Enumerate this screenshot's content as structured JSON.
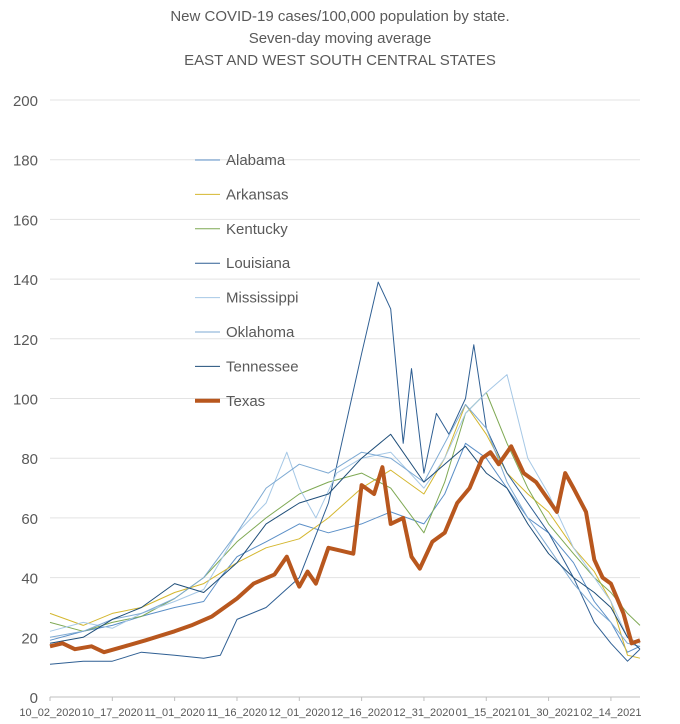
{
  "chart_data": {
    "type": "line",
    "title_lines": [
      "New COVID-19 cases/100,000 population by state.",
      "Seven-day moving average",
      "EAST AND WEST SOUTH CENTRAL STATES"
    ],
    "xlabel": "",
    "ylabel": "",
    "ylim": [
      0,
      200
    ],
    "yticks": [
      0,
      20,
      40,
      60,
      80,
      100,
      120,
      140,
      160,
      180,
      200
    ],
    "grid": true,
    "legend_position": "inside-left",
    "x_start": "10_02_2020",
    "x_end": "02_21_2021",
    "xtick_labels": [
      "10_02_2020",
      "10_17_2020",
      "11_01_2020",
      "11_16_2020",
      "12_01_2020",
      "12_16_2020",
      "12_31_2020",
      "01_15_2021",
      "01_30_2021",
      "02_14_2021"
    ],
    "series": [
      {
        "name": "Alabama",
        "color": "#5b8fc7",
        "width": 1,
        "points": [
          [
            "10_02_2020",
            19
          ],
          [
            "10_10_2020",
            22
          ],
          [
            "10_17_2020",
            24
          ],
          [
            "10_24_2020",
            27
          ],
          [
            "11_01_2020",
            30
          ],
          [
            "11_08_2020",
            32
          ],
          [
            "11_12_2020",
            40
          ],
          [
            "11_16_2020",
            47
          ],
          [
            "11_23_2020",
            52
          ],
          [
            "12_01_2020",
            58
          ],
          [
            "12_08_2020",
            55
          ],
          [
            "12_16_2020",
            58
          ],
          [
            "12_23_2020",
            62
          ],
          [
            "12_31_2020",
            58
          ],
          [
            "01_05_2021",
            68
          ],
          [
            "01_10_2021",
            85
          ],
          [
            "01_15_2021",
            80
          ],
          [
            "01_20_2021",
            70
          ],
          [
            "01_25_2021",
            60
          ],
          [
            "01_30_2021",
            55
          ],
          [
            "02_05_2021",
            45
          ],
          [
            "02_10_2021",
            32
          ],
          [
            "02_14_2021",
            25
          ],
          [
            "02_18_2021",
            15
          ],
          [
            "02_21_2021",
            17
          ]
        ]
      },
      {
        "name": "Arkansas",
        "color": "#d4b72f",
        "width": 1,
        "points": [
          [
            "10_02_2020",
            28
          ],
          [
            "10_10_2020",
            24
          ],
          [
            "10_17_2020",
            28
          ],
          [
            "10_24_2020",
            30
          ],
          [
            "11_01_2020",
            35
          ],
          [
            "11_08_2020",
            38
          ],
          [
            "11_16_2020",
            45
          ],
          [
            "11_23_2020",
            50
          ],
          [
            "12_01_2020",
            53
          ],
          [
            "12_08_2020",
            60
          ],
          [
            "12_16_2020",
            70
          ],
          [
            "12_23_2020",
            76
          ],
          [
            "12_31_2020",
            68
          ],
          [
            "01_05_2021",
            80
          ],
          [
            "01_10_2021",
            98
          ],
          [
            "01_15_2021",
            88
          ],
          [
            "01_20_2021",
            75
          ],
          [
            "01_25_2021",
            68
          ],
          [
            "01_30_2021",
            62
          ],
          [
            "02_05_2021",
            50
          ],
          [
            "02_10_2021",
            42
          ],
          [
            "02_14_2021",
            32
          ],
          [
            "02_18_2021",
            14
          ],
          [
            "02_21_2021",
            13
          ]
        ]
      },
      {
        "name": "Kentucky",
        "color": "#7fa954",
        "width": 1,
        "points": [
          [
            "10_02_2020",
            25
          ],
          [
            "10_10_2020",
            22
          ],
          [
            "10_17_2020",
            25
          ],
          [
            "10_24_2020",
            27
          ],
          [
            "11_01_2020",
            33
          ],
          [
            "11_08_2020",
            40
          ],
          [
            "11_16_2020",
            52
          ],
          [
            "11_23_2020",
            60
          ],
          [
            "12_01_2020",
            68
          ],
          [
            "12_08_2020",
            72
          ],
          [
            "12_16_2020",
            75
          ],
          [
            "12_23_2020",
            70
          ],
          [
            "12_31_2020",
            55
          ],
          [
            "01_05_2021",
            72
          ],
          [
            "01_10_2021",
            95
          ],
          [
            "01_15_2021",
            102
          ],
          [
            "01_20_2021",
            85
          ],
          [
            "01_25_2021",
            70
          ],
          [
            "01_30_2021",
            58
          ],
          [
            "02_05_2021",
            48
          ],
          [
            "02_10_2021",
            40
          ],
          [
            "02_14_2021",
            35
          ],
          [
            "02_18_2021",
            28
          ],
          [
            "02_21_2021",
            24
          ]
        ]
      },
      {
        "name": "Louisiana",
        "color": "#2f5f93",
        "width": 1,
        "points": [
          [
            "10_02_2020",
            11
          ],
          [
            "10_10_2020",
            12
          ],
          [
            "10_17_2020",
            12
          ],
          [
            "10_24_2020",
            15
          ],
          [
            "11_01_2020",
            14
          ],
          [
            "11_08_2020",
            13
          ],
          [
            "11_12_2020",
            14
          ],
          [
            "11_16_2020",
            26
          ],
          [
            "11_23_2020",
            30
          ],
          [
            "12_01_2020",
            40
          ],
          [
            "12_08_2020",
            65
          ],
          [
            "12_12_2020",
            90
          ],
          [
            "12_16_2020",
            115
          ],
          [
            "12_20_2020",
            139
          ],
          [
            "12_23_2020",
            130
          ],
          [
            "12_26_2020",
            85
          ],
          [
            "12_28_2020",
            110
          ],
          [
            "12_31_2020",
            75
          ],
          [
            "01_03_2021",
            95
          ],
          [
            "01_06_2021",
            88
          ],
          [
            "01_10_2021",
            100
          ],
          [
            "01_12_2021",
            118
          ],
          [
            "01_15_2021",
            90
          ],
          [
            "01_20_2021",
            75
          ],
          [
            "01_25_2021",
            65
          ],
          [
            "01_30_2021",
            55
          ],
          [
            "02_05_2021",
            40
          ],
          [
            "02_10_2021",
            25
          ],
          [
            "02_14_2021",
            18
          ],
          [
            "02_18_2021",
            12
          ],
          [
            "02_21_2021",
            16
          ]
        ]
      },
      {
        "name": "Mississippi",
        "color": "#a6c8e6",
        "width": 1,
        "points": [
          [
            "10_02_2020",
            22
          ],
          [
            "10_10_2020",
            25
          ],
          [
            "10_17_2020",
            23
          ],
          [
            "10_24_2020",
            28
          ],
          [
            "11_01_2020",
            32
          ],
          [
            "11_08_2020",
            36
          ],
          [
            "11_16_2020",
            55
          ],
          [
            "11_23_2020",
            65
          ],
          [
            "11_28_2020",
            82
          ],
          [
            "12_01_2020",
            70
          ],
          [
            "12_05_2020",
            60
          ],
          [
            "12_10_2020",
            75
          ],
          [
            "12_16_2020",
            80
          ],
          [
            "12_23_2020",
            82
          ],
          [
            "12_31_2020",
            70
          ],
          [
            "01_05_2021",
            80
          ],
          [
            "01_10_2021",
            95
          ],
          [
            "01_15_2021",
            102
          ],
          [
            "01_20_2021",
            108
          ],
          [
            "01_25_2021",
            80
          ],
          [
            "01_30_2021",
            68
          ],
          [
            "02_05_2021",
            50
          ],
          [
            "02_10_2021",
            40
          ],
          [
            "02_14_2021",
            32
          ],
          [
            "02_18_2021",
            20
          ],
          [
            "02_21_2021",
            18
          ]
        ]
      },
      {
        "name": "Oklahoma",
        "color": "#7eaad3",
        "width": 1,
        "points": [
          [
            "10_02_2020",
            20
          ],
          [
            "10_10_2020",
            22
          ],
          [
            "10_17_2020",
            26
          ],
          [
            "10_24_2020",
            28
          ],
          [
            "11_01_2020",
            33
          ],
          [
            "11_08_2020",
            40
          ],
          [
            "11_16_2020",
            55
          ],
          [
            "11_23_2020",
            70
          ],
          [
            "12_01_2020",
            78
          ],
          [
            "12_08_2020",
            75
          ],
          [
            "12_16_2020",
            82
          ],
          [
            "12_23_2020",
            80
          ],
          [
            "12_31_2020",
            72
          ],
          [
            "01_05_2021",
            85
          ],
          [
            "01_10_2021",
            98
          ],
          [
            "01_15_2021",
            90
          ],
          [
            "01_20_2021",
            72
          ],
          [
            "01_25_2021",
            60
          ],
          [
            "01_30_2021",
            50
          ],
          [
            "02_05_2021",
            38
          ],
          [
            "02_10_2021",
            30
          ],
          [
            "02_14_2021",
            25
          ],
          [
            "02_18_2021",
            18
          ],
          [
            "02_21_2021",
            17
          ]
        ]
      },
      {
        "name": "Tennessee",
        "color": "#1f4e79",
        "width": 1,
        "points": [
          [
            "10_02_2020",
            18
          ],
          [
            "10_10_2020",
            20
          ],
          [
            "10_17_2020",
            26
          ],
          [
            "10_24_2020",
            30
          ],
          [
            "11_01_2020",
            38
          ],
          [
            "11_08_2020",
            35
          ],
          [
            "11_16_2020",
            45
          ],
          [
            "11_23_2020",
            58
          ],
          [
            "12_01_2020",
            65
          ],
          [
            "12_08_2020",
            68
          ],
          [
            "12_16_2020",
            80
          ],
          [
            "12_23_2020",
            88
          ],
          [
            "12_31_2020",
            72
          ],
          [
            "01_05_2021",
            78
          ],
          [
            "01_10_2021",
            84
          ],
          [
            "01_15_2021",
            75
          ],
          [
            "01_20_2021",
            70
          ],
          [
            "01_25_2021",
            58
          ],
          [
            "01_30_2021",
            48
          ],
          [
            "02_05_2021",
            40
          ],
          [
            "02_10_2021",
            35
          ],
          [
            "02_14_2021",
            30
          ],
          [
            "02_18_2021",
            20
          ],
          [
            "02_21_2021",
            16
          ]
        ]
      },
      {
        "name": "Texas",
        "color": "#b8571e",
        "width": 4,
        "points": [
          [
            "10_02_2020",
            17
          ],
          [
            "10_05_2020",
            18
          ],
          [
            "10_08_2020",
            16
          ],
          [
            "10_12_2020",
            17
          ],
          [
            "10_15_2020",
            15
          ],
          [
            "10_20_2020",
            17
          ],
          [
            "10_25_2020",
            19
          ],
          [
            "11_01_2020",
            22
          ],
          [
            "11_05_2020",
            24
          ],
          [
            "11_10_2020",
            27
          ],
          [
            "11_16_2020",
            33
          ],
          [
            "11_20_2020",
            38
          ],
          [
            "11_25_2020",
            41
          ],
          [
            "11_28_2020",
            47
          ],
          [
            "11_30_2020",
            40
          ],
          [
            "12_01_2020",
            37
          ],
          [
            "12_03_2020",
            42
          ],
          [
            "12_05_2020",
            38
          ],
          [
            "12_08_2020",
            50
          ],
          [
            "12_11_2020",
            49
          ],
          [
            "12_14_2020",
            48
          ],
          [
            "12_16_2020",
            71
          ],
          [
            "12_19_2020",
            68
          ],
          [
            "12_21_2020",
            77
          ],
          [
            "12_23_2020",
            58
          ],
          [
            "12_26_2020",
            60
          ],
          [
            "12_28_2020",
            47
          ],
          [
            "12_30_2020",
            43
          ],
          [
            "01_02_2021",
            52
          ],
          [
            "01_05_2021",
            55
          ],
          [
            "01_08_2021",
            65
          ],
          [
            "01_11_2021",
            70
          ],
          [
            "01_14_2021",
            80
          ],
          [
            "01_16_2021",
            82
          ],
          [
            "01_18_2021",
            78
          ],
          [
            "01_21_2021",
            84
          ],
          [
            "01_24_2021",
            75
          ],
          [
            "01_27_2021",
            72
          ],
          [
            "01_30_2021",
            66
          ],
          [
            "02_01_2021",
            62
          ],
          [
            "02_03_2021",
            75
          ],
          [
            "02_05_2021",
            70
          ],
          [
            "02_08_2021",
            62
          ],
          [
            "02_10_2021",
            46
          ],
          [
            "02_12_2021",
            40
          ],
          [
            "02_14_2021",
            38
          ],
          [
            "02_17_2021",
            28
          ],
          [
            "02_19_2021",
            18
          ],
          [
            "02_21_2021",
            19
          ]
        ]
      }
    ]
  }
}
